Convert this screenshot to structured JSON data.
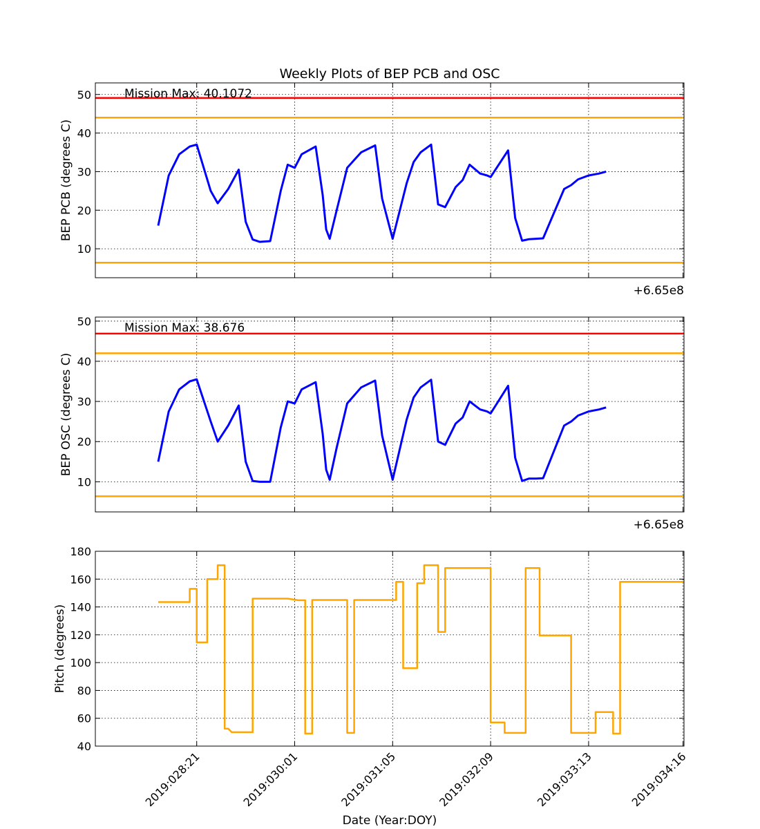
{
  "figure_title": "Weekly Plots of BEP PCB and OSC",
  "shared_xlabel": "Date (Year:DOY)",
  "colors": {
    "data": "#0000ff",
    "pitch": "#ffa500",
    "red_limit": "#ff0000",
    "yellow_limit": "#ffa500",
    "grid": "#000000"
  },
  "chart_data": [
    {
      "type": "line",
      "panel": "bep-pcb",
      "ylabel": "BEP PCB (degrees C)",
      "ylim": [
        2.5,
        53
      ],
      "yticks": [
        10,
        20,
        30,
        40,
        50
      ],
      "offset_label": "+6.65e8",
      "annotation": "Mission Max: 40.1072",
      "limit_lines": [
        {
          "name": "red-limit",
          "value": 49.1,
          "color": "#ff0000"
        },
        {
          "name": "yellow-limit-upper",
          "value": 44.0,
          "color": "#ffa500"
        },
        {
          "name": "yellow-limit-lower",
          "value": 6.4,
          "color": "#ffa500"
        }
      ],
      "series": [
        {
          "color": "#0000ff",
          "x": [
            "2019:028:10",
            "2019:028:13",
            "2019:028:16",
            "2019:028:19",
            "2019:028:21",
            "2019:029:01",
            "2019:029:03",
            "2019:029:06",
            "2019:029:09",
            "2019:029:11",
            "2019:029:13",
            "2019:029:15",
            "2019:029:18",
            "2019:029:21",
            "2019:029:23",
            "2019:030:01",
            "2019:030:03",
            "2019:030:07",
            "2019:030:09",
            "2019:030:10",
            "2019:030:11",
            "2019:030:13",
            "2019:030:16",
            "2019:030:20",
            "2019:031:00",
            "2019:031:02",
            "2019:031:05",
            "2019:031:09",
            "2019:031:11",
            "2019:031:13",
            "2019:031:16",
            "2019:031:18",
            "2019:031:20",
            "2019:031:23",
            "2019:032:01",
            "2019:032:03",
            "2019:032:06",
            "2019:032:08",
            "2019:032:09",
            "2019:032:14",
            "2019:032:16",
            "2019:032:18",
            "2019:032:20",
            "2019:032:22",
            "2019:033:00",
            "2019:033:06",
            "2019:033:08",
            "2019:033:10",
            "2019:033:13",
            "2019:033:16",
            "2019:033:18"
          ],
          "values": [
            16.0,
            29.0,
            34.5,
            36.5,
            37.0,
            25.0,
            21.8,
            25.5,
            30.5,
            17.0,
            12.4,
            11.8,
            12.0,
            25.0,
            31.8,
            31.0,
            34.5,
            36.5,
            24.0,
            15.0,
            12.6,
            20.0,
            31.0,
            35.0,
            36.8,
            23.0,
            12.6,
            27.0,
            32.5,
            35.0,
            37.0,
            21.5,
            20.8,
            26.0,
            27.8,
            31.8,
            29.5,
            29.0,
            28.6,
            35.5,
            18.0,
            12.1,
            12.5,
            12.6,
            12.7,
            25.5,
            26.5,
            28.0,
            29.0,
            29.5,
            30.0
          ]
        }
      ]
    },
    {
      "type": "line",
      "panel": "bep-osc",
      "ylabel": "BEP OSC (degrees C)",
      "ylim": [
        2.5,
        51
      ],
      "yticks": [
        10,
        20,
        30,
        40,
        50
      ],
      "offset_label": "+6.65e8",
      "annotation": "Mission Max: 38.676",
      "limit_lines": [
        {
          "name": "red-limit",
          "value": 46.9,
          "color": "#ff0000"
        },
        {
          "name": "yellow-limit-upper",
          "value": 42.0,
          "color": "#ffa500"
        },
        {
          "name": "yellow-limit-lower",
          "value": 6.4,
          "color": "#ffa500"
        }
      ],
      "series": [
        {
          "color": "#0000ff",
          "x": [
            "2019:028:10",
            "2019:028:13",
            "2019:028:16",
            "2019:028:19",
            "2019:028:21",
            "2019:029:01",
            "2019:029:03",
            "2019:029:06",
            "2019:029:09",
            "2019:029:11",
            "2019:029:13",
            "2019:029:15",
            "2019:029:18",
            "2019:029:21",
            "2019:029:23",
            "2019:030:01",
            "2019:030:03",
            "2019:030:07",
            "2019:030:09",
            "2019:030:10",
            "2019:030:11",
            "2019:030:13",
            "2019:030:16",
            "2019:030:20",
            "2019:031:00",
            "2019:031:02",
            "2019:031:05",
            "2019:031:09",
            "2019:031:11",
            "2019:031:13",
            "2019:031:16",
            "2019:031:18",
            "2019:031:20",
            "2019:031:23",
            "2019:032:01",
            "2019:032:03",
            "2019:032:06",
            "2019:032:08",
            "2019:032:09",
            "2019:032:14",
            "2019:032:16",
            "2019:032:18",
            "2019:032:20",
            "2019:032:22",
            "2019:033:00",
            "2019:033:06",
            "2019:033:08",
            "2019:033:10",
            "2019:033:13",
            "2019:033:16",
            "2019:033:18"
          ],
          "values": [
            15.0,
            27.5,
            33.0,
            35.0,
            35.5,
            25.0,
            20.0,
            24.0,
            29.0,
            15.0,
            10.2,
            10.0,
            10.0,
            23.5,
            30.0,
            29.5,
            33.0,
            34.8,
            22.0,
            13.0,
            10.5,
            18.5,
            29.5,
            33.5,
            35.2,
            21.5,
            10.5,
            25.5,
            31.0,
            33.5,
            35.4,
            20.0,
            19.2,
            24.5,
            26.0,
            30.0,
            28.0,
            27.5,
            27.0,
            33.9,
            16.0,
            10.2,
            10.8,
            10.8,
            10.9,
            24.0,
            25.0,
            26.5,
            27.5,
            28.0,
            28.5
          ]
        }
      ]
    },
    {
      "type": "line",
      "panel": "pitch",
      "ylabel": "Pitch (degrees)",
      "ylim": [
        40,
        180
      ],
      "yticks": [
        40,
        60,
        80,
        100,
        120,
        140,
        160,
        180
      ],
      "xticks": [
        "2019:028:21",
        "2019:030:01",
        "2019:031:05",
        "2019:032:09",
        "2019:033:13",
        "2019:034:16"
      ],
      "series": [
        {
          "color": "#ffa500",
          "x": [
            "2019:028:10",
            "2019:028:19",
            "2019:028:19",
            "2019:028:21",
            "2019:028:21",
            "2019:029:00",
            "2019:029:00",
            "2019:029:03",
            "2019:029:03",
            "2019:029:05",
            "2019:029:05",
            "2019:029:06",
            "2019:029:07",
            "2019:029:13",
            "2019:029:13",
            "2019:029:23",
            "2019:030:02",
            "2019:030:04",
            "2019:030:04",
            "2019:030:06",
            "2019:030:06",
            "2019:030:12",
            "2019:030:16",
            "2019:030:16",
            "2019:030:18",
            "2019:030:18",
            "2019:031:06",
            "2019:031:06",
            "2019:031:08",
            "2019:031:08",
            "2019:031:12",
            "2019:031:12",
            "2019:031:14",
            "2019:031:14",
            "2019:031:18",
            "2019:031:18",
            "2019:031:20",
            "2019:031:20",
            "2019:032:09",
            "2019:032:09",
            "2019:032:13",
            "2019:032:13",
            "2019:032:19",
            "2019:032:19",
            "2019:032:23",
            "2019:032:23",
            "2019:033:00",
            "2019:033:00",
            "2019:033:08",
            "2019:033:08",
            "2019:033:15",
            "2019:033:15",
            "2019:033:20",
            "2019:033:20",
            "2019:033:22",
            "2019:033:22",
            "2019:034:00",
            "2019:034:00",
            "2019:034:02",
            "2019:034:02",
            "2019:034:16",
            "2019:034:18"
          ],
          "values": [
            143.5,
            143.5,
            153,
            153,
            114.5,
            114.5,
            160,
            160,
            170,
            170,
            52.5,
            52.5,
            50,
            50,
            146,
            146,
            144.8,
            144.8,
            49,
            49,
            145,
            145,
            145,
            49.5,
            49.5,
            145,
            145,
            158,
            158,
            96,
            96,
            157,
            157,
            170,
            170,
            122,
            122,
            168,
            168,
            57,
            57,
            49.5,
            49.5,
            168,
            168,
            119.5,
            119.5,
            119.5,
            119.5,
            49.5,
            49.5,
            64.5,
            64.5,
            49,
            49,
            158,
            158,
            158,
            158,
            158,
            158,
            158
          ]
        }
      ]
    }
  ]
}
